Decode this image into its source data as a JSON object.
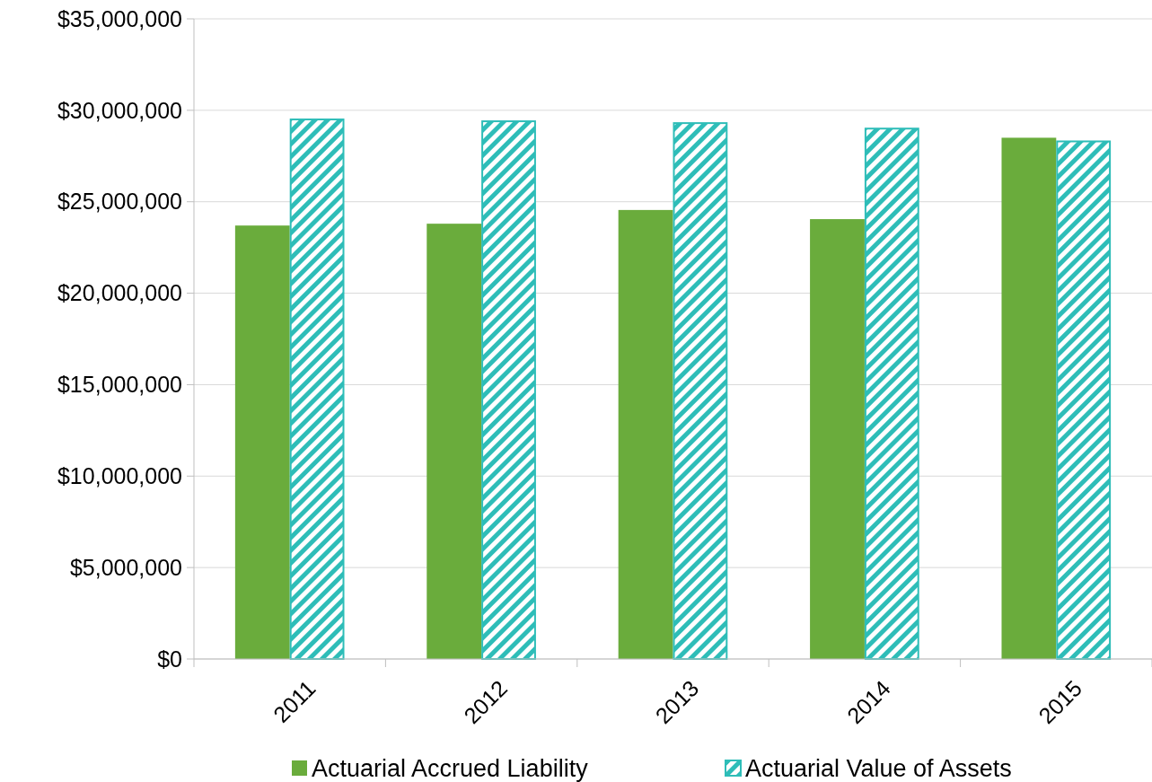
{
  "chart_data": {
    "type": "bar",
    "categories": [
      "2011",
      "2012",
      "2013",
      "2014",
      "2015"
    ],
    "series": [
      {
        "name": "Actuarial Accrued Liability",
        "color": "#6aac3c",
        "values": [
          23700000,
          23800000,
          24550000,
          24050000,
          28500000
        ]
      },
      {
        "name": "Actuarial Value of Assets",
        "color": "#2ebdb8",
        "values": [
          29500000,
          29400000,
          29300000,
          29000000,
          28300000
        ]
      }
    ],
    "ylim": [
      0,
      35000000
    ],
    "yticks": [
      {
        "value": 0,
        "label": "$0"
      },
      {
        "value": 5000000,
        "label": "$5,000,000"
      },
      {
        "value": 10000000,
        "label": "$10,000,000"
      },
      {
        "value": 15000000,
        "label": "$15,000,000"
      },
      {
        "value": 20000000,
        "label": "$20,000,000"
      },
      {
        "value": 25000000,
        "label": "$25,000,000"
      },
      {
        "value": 30000000,
        "label": "$30,000,000"
      },
      {
        "value": 35000000,
        "label": "$35,000,000"
      }
    ],
    "grid": "y",
    "legend": "bottom"
  }
}
